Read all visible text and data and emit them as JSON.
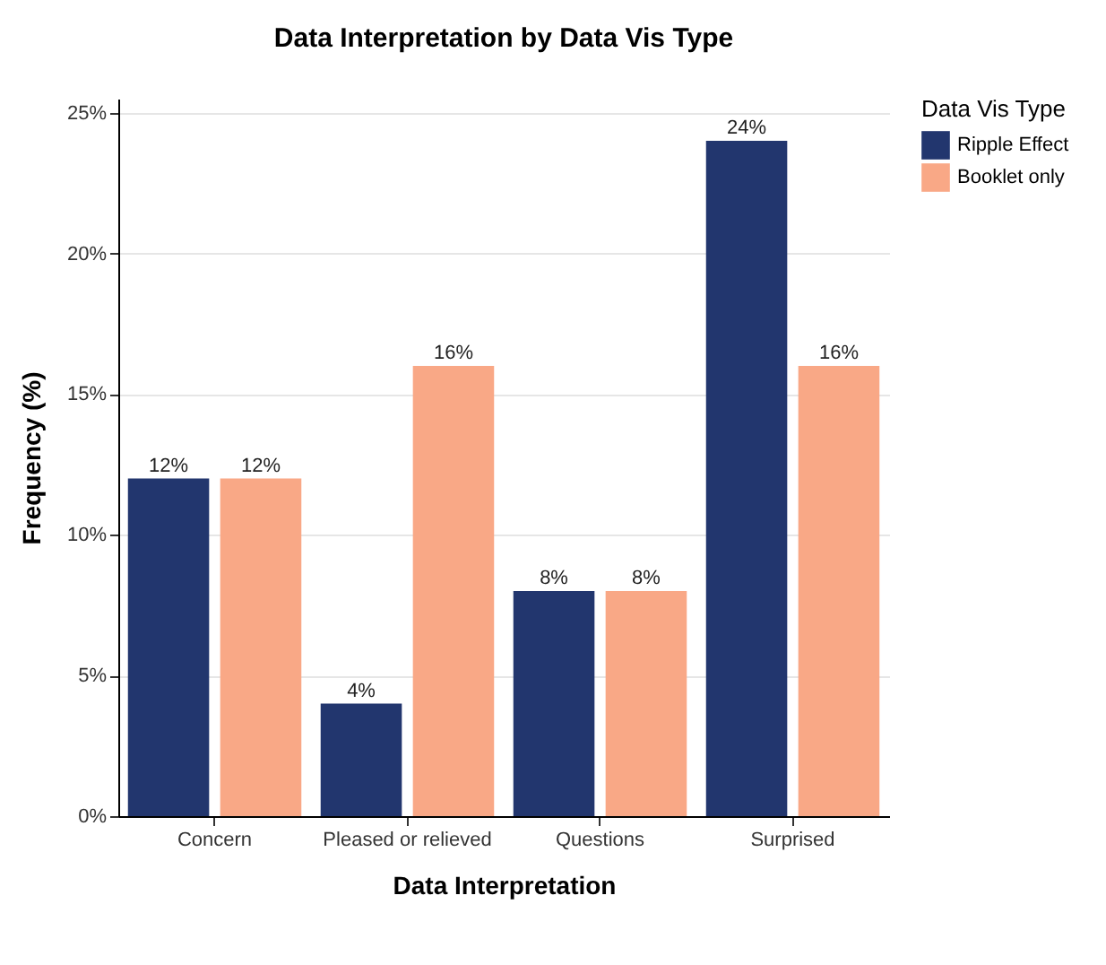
{
  "chart_data": {
    "type": "bar",
    "title": "Data Interpretation by Data Vis Type",
    "xlabel": "Data Interpretation",
    "ylabel": "Frequency (%)",
    "legend_title": "Data Vis Type",
    "categories": [
      "Concern",
      "Pleased or relieved",
      "Questions",
      "Surprised"
    ],
    "series": [
      {
        "name": "Ripple Effect",
        "color": "#22366e",
        "values": [
          12,
          4,
          8,
          24
        ],
        "value_labels": [
          "12%",
          "4%",
          "8%",
          "24%"
        ]
      },
      {
        "name": "Booklet only",
        "color": "#f9a886",
        "values": [
          12,
          16,
          8,
          16
        ],
        "value_labels": [
          "12%",
          "16%",
          "8%",
          "16%"
        ]
      }
    ],
    "ylim": [
      0,
      25.5
    ],
    "yticks": [
      {
        "value": 0,
        "label": "0%"
      },
      {
        "value": 5,
        "label": "5%"
      },
      {
        "value": 10,
        "label": "10%"
      },
      {
        "value": 15,
        "label": "15%"
      },
      {
        "value": 20,
        "label": "20%"
      },
      {
        "value": 25,
        "label": "25%"
      }
    ],
    "grid": "y",
    "legend": "right"
  }
}
